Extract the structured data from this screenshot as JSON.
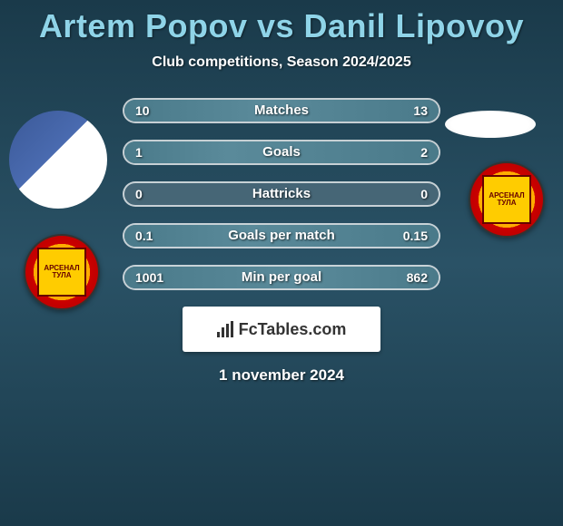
{
  "title": "Artem Popov vs Danil Lipovoy",
  "subtitle": "Club competitions, Season 2024/2025",
  "date": "1 november 2024",
  "brand": "FcTables.com",
  "colors": {
    "title": "#8fd4e8",
    "text": "#ffffff",
    "bar_border": "rgba(255,255,255,0.7)",
    "bar_bg": "rgba(255,255,255,0.15)",
    "bg_top": "#1a3a4a",
    "bg_mid": "#2a5266",
    "facebook": "#3b5998",
    "badge_outer": "#cc0000",
    "badge_inner": "#ffcc00"
  },
  "stats": [
    {
      "label": "Matches",
      "left_val": "10",
      "right_val": "13",
      "left_pct": 43,
      "right_pct": 57
    },
    {
      "label": "Goals",
      "left_val": "1",
      "right_val": "2",
      "left_pct": 33,
      "right_pct": 67
    },
    {
      "label": "Hattricks",
      "left_val": "0",
      "right_val": "0",
      "left_pct": 0,
      "right_pct": 0
    },
    {
      "label": "Goals per match",
      "left_val": "0.1",
      "right_val": "0.15",
      "left_pct": 40,
      "right_pct": 60
    },
    {
      "label": "Min per goal",
      "left_val": "1001",
      "right_val": "862",
      "left_pct": 54,
      "right_pct": 46
    }
  ],
  "club_badge_text": "АРСЕНАЛ\nТУЛА"
}
